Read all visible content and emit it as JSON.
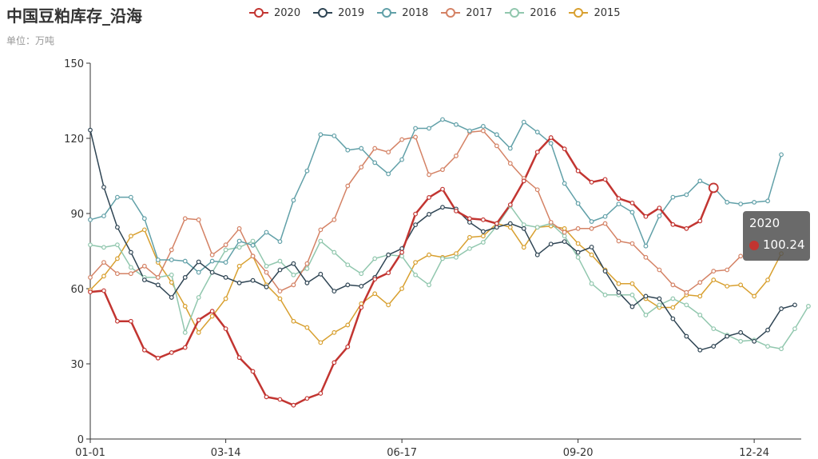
{
  "chart_data": {
    "type": "line",
    "title": "中国豆粕库存_沿海",
    "subtitle": "单位：万吨",
    "ylim": [
      0,
      150
    ],
    "yticks": [
      0,
      30,
      60,
      90,
      120,
      150
    ],
    "xtick_labels": [
      "01-01",
      "03-14",
      "06-17",
      "09-20",
      "12-24"
    ],
    "xtick_positions": [
      0,
      10,
      23,
      36,
      49
    ],
    "legend_position": "top-center",
    "grid": false,
    "series": [
      {
        "name": "2020",
        "color": "#c23531",
        "values": [
          58.7,
          59.2,
          47,
          47,
          35.5,
          32.3,
          34.5,
          36.5,
          47.5,
          51,
          44,
          32.5,
          27,
          16.8,
          15.8,
          13.5,
          16.2,
          18.2,
          30.5,
          36.8,
          52.5,
          63.8,
          66.3,
          74.5,
          89.8,
          96.4,
          99.7,
          91,
          88,
          87.5,
          86,
          93.5,
          103,
          114.5,
          120.3,
          115.8,
          107,
          102.5,
          103.6,
          96,
          94.2,
          88.8,
          92.2,
          85.6,
          84,
          87,
          100.24
        ]
      },
      {
        "name": "2019",
        "color": "#2f4554",
        "values": [
          123.3,
          100.5,
          84.5,
          74.5,
          63.5,
          61.5,
          56.5,
          64.5,
          70.7,
          66.5,
          64.5,
          62.3,
          63.3,
          60.7,
          67.5,
          70,
          62.3,
          65.8,
          59,
          61.5,
          61,
          64.5,
          73.5,
          76,
          85.5,
          89.7,
          92.5,
          91.8,
          86.5,
          82.8,
          84.5,
          86,
          84,
          73.5,
          77.8,
          78.8,
          74.5,
          76.6,
          67,
          58.5,
          52.8,
          57,
          56,
          48,
          41,
          35.5,
          37,
          41,
          42.5,
          39,
          43.5,
          52,
          53.5
        ]
      },
      {
        "name": "2018",
        "color": "#61a0a8",
        "values": [
          87.5,
          89,
          96.5,
          96.5,
          88,
          71.5,
          71.5,
          71,
          66.5,
          71,
          70.5,
          79,
          77.3,
          82.5,
          78.8,
          95.3,
          107,
          121.5,
          121,
          115.3,
          116,
          110.3,
          105.8,
          111.5,
          124,
          124,
          127.5,
          125.5,
          123,
          124.8,
          121.5,
          116,
          126.5,
          122.5,
          118,
          102,
          94,
          86.8,
          88.8,
          93.8,
          90.5,
          77,
          89,
          96.5,
          97.5,
          103,
          100.5,
          94.5,
          93.8,
          94.5,
          95,
          113.5
        ]
      },
      {
        "name": "2017",
        "color": "#d48265",
        "values": [
          64.5,
          70.5,
          66,
          66,
          69,
          64.5,
          75.5,
          88,
          87.5,
          73.5,
          77.5,
          84,
          73,
          66.5,
          59,
          61.5,
          70,
          83.5,
          87.5,
          101,
          108.5,
          116,
          114.5,
          119.5,
          120.5,
          105.5,
          107.5,
          113,
          122.5,
          123,
          117,
          110,
          104,
          99.5,
          86.5,
          82.5,
          84,
          84,
          86,
          79,
          78,
          72.5,
          67.5,
          61.5,
          58.5,
          62.5,
          67,
          67.5,
          73
        ]
      },
      {
        "name": "2016",
        "color": "#91c7ae",
        "values": [
          77.5,
          76.5,
          77.5,
          68.5,
          64.5,
          64.5,
          65.5,
          42.5,
          56.5,
          66.5,
          75.5,
          76.5,
          79,
          69,
          71,
          65.5,
          68,
          79,
          74.5,
          69.5,
          66,
          72,
          73.5,
          73,
          65.5,
          61.5,
          72,
          72.5,
          76,
          78.5,
          85,
          93,
          85.5,
          84.5,
          86,
          81,
          72.5,
          62,
          57.5,
          57.5,
          57.5,
          49.5,
          53.5,
          56,
          53.5,
          49.5,
          44,
          41.5,
          39,
          39.5,
          37,
          36,
          44,
          53
        ]
      },
      {
        "name": "2015",
        "color": "#d8a030",
        "values": [
          59.5,
          65,
          72,
          81,
          83.5,
          70.5,
          62.5,
          53,
          42.5,
          49,
          56,
          69,
          73,
          61.5,
          56,
          47,
          44.5,
          38.5,
          42.5,
          45.5,
          54,
          58,
          53.5,
          60,
          70.5,
          73.5,
          72.5,
          74,
          80.5,
          81,
          86,
          84.5,
          76.5,
          84.5,
          85,
          84,
          78,
          73.5,
          67.5,
          62,
          62,
          56,
          52.5,
          52.5,
          57.5,
          57,
          63.5,
          61,
          61.5,
          57,
          63.5,
          74
        ]
      }
    ],
    "tooltip": {
      "series": "2020",
      "value": "100.24"
    }
  }
}
